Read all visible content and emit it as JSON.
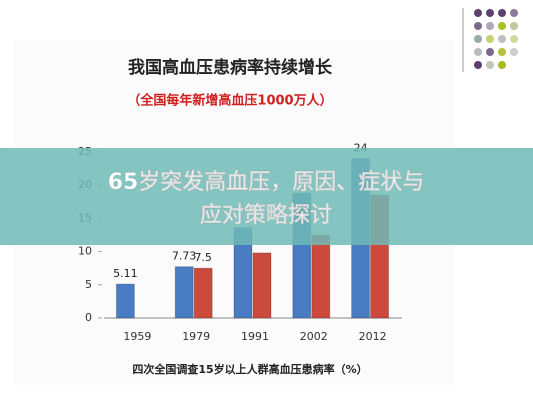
{
  "chart_data": {
    "type": "bar",
    "title": "我国高血压患病率持续增长",
    "subtitle": "（全国每年新增高血压1000万人）",
    "caption": "四次全国调查15岁以上人群高血压患病率（%）",
    "categories": [
      "1959",
      "1979",
      "1991",
      "2002",
      "2012"
    ],
    "series": [
      {
        "color": "#4a7cc4",
        "values": [
          5.11,
          7.73,
          13.6,
          18.8,
          24
        ],
        "value_labels": [
          "5.11",
          "7.73",
          null,
          null,
          "24"
        ]
      },
      {
        "color": "#cc4a3c",
        "values": [
          null,
          7.5,
          9.8,
          12.5,
          18.5
        ],
        "value_labels": [
          null,
          "7.5",
          null,
          null,
          null
        ]
      }
    ],
    "ylim": [
      0,
      25
    ],
    "yticks": [
      0,
      5,
      10,
      15,
      20,
      25
    ],
    "grid": false
  },
  "banner": {
    "lines": [
      "65岁突发高血压，原因、症状与",
      "应对策略探讨"
    ]
  }
}
